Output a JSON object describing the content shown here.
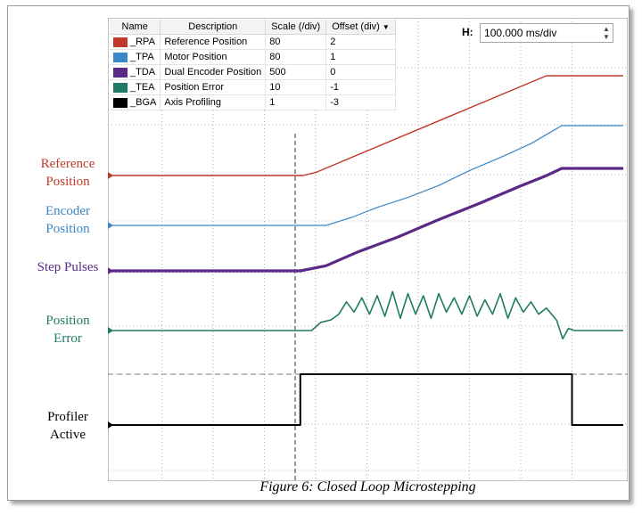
{
  "labels": {
    "reference": [
      "Reference",
      "Position"
    ],
    "encoder": [
      "Encoder",
      "Position"
    ],
    "step": "Step Pulses",
    "error": [
      "Position",
      "Error"
    ],
    "profiler": [
      "Profiler",
      "Active"
    ]
  },
  "caption": "Figure 6:  Closed Loop Microstepping",
  "horizontal": {
    "prefix": "H:",
    "value": "100.000 ms/div"
  },
  "legend": {
    "headers": [
      "Name",
      "Description",
      "Scale (/div)",
      "Offset (div)"
    ],
    "sort_icon": "sort-desc-icon",
    "rows": [
      {
        "name": "_RPA",
        "description": "Reference Position",
        "scale": "80",
        "offset": "2",
        "color": "#c0392b"
      },
      {
        "name": "_TPA",
        "description": "Motor Position",
        "scale": "80",
        "offset": "1",
        "color": "#3a86c8"
      },
      {
        "name": "_TDA",
        "description": "Dual Encoder Position",
        "scale": "500",
        "offset": "0",
        "color": "#5b2a86"
      },
      {
        "name": "_TEA",
        "description": "Position Error",
        "scale": "10",
        "offset": "-1",
        "color": "#1f7a66"
      },
      {
        "name": "_BGA",
        "description": "Axis Profiling",
        "scale": "1",
        "offset": "-3",
        "color": "#000000"
      }
    ]
  },
  "colors": {
    "reference": "#c0392b",
    "encoder": "#3a86c8",
    "step": "#5b2a86",
    "error": "#1f7a66",
    "profiler": "#000000",
    "grid": "#9a9a9a"
  },
  "chart_data": {
    "type": "line",
    "title": "Figure 6:  Closed Loop Microstepping",
    "x_unit": "ms",
    "xlim": [
      0,
      1000
    ],
    "grid": true,
    "legend_position": "top-left",
    "series": [
      {
        "name": "Reference Position",
        "key": "reference",
        "points": [
          [
            0,
            0
          ],
          [
            375,
            0
          ],
          [
            400,
            3
          ],
          [
            850,
            100
          ],
          [
            900,
            100
          ],
          [
            1000,
            100
          ]
        ]
      },
      {
        "name": "Encoder Position",
        "key": "encoder",
        "points": [
          [
            0,
            0
          ],
          [
            420,
            0
          ],
          [
            470,
            8
          ],
          [
            520,
            18
          ],
          [
            580,
            28
          ],
          [
            640,
            40
          ],
          [
            700,
            55
          ],
          [
            760,
            68
          ],
          [
            820,
            82
          ],
          [
            860,
            94
          ],
          [
            880,
            100
          ],
          [
            1000,
            100
          ]
        ]
      },
      {
        "name": "Step Pulses",
        "key": "step",
        "points": [
          [
            0,
            0
          ],
          [
            370,
            0
          ],
          [
            420,
            5
          ],
          [
            480,
            18
          ],
          [
            560,
            33
          ],
          [
            640,
            50
          ],
          [
            720,
            66
          ],
          [
            800,
            83
          ],
          [
            850,
            93
          ],
          [
            880,
            100
          ],
          [
            1000,
            100
          ]
        ]
      },
      {
        "name": "Position Error",
        "key": "error",
        "points": [
          [
            0,
            0
          ],
          [
            392,
            0
          ],
          [
            410,
            20
          ],
          [
            430,
            26
          ],
          [
            445,
            40
          ],
          [
            460,
            70
          ],
          [
            475,
            45
          ],
          [
            490,
            80
          ],
          [
            505,
            40
          ],
          [
            520,
            85
          ],
          [
            535,
            35
          ],
          [
            550,
            95
          ],
          [
            565,
            30
          ],
          [
            580,
            90
          ],
          [
            595,
            40
          ],
          [
            610,
            85
          ],
          [
            625,
            30
          ],
          [
            640,
            90
          ],
          [
            655,
            45
          ],
          [
            670,
            80
          ],
          [
            685,
            40
          ],
          [
            700,
            85
          ],
          [
            715,
            35
          ],
          [
            730,
            75
          ],
          [
            745,
            40
          ],
          [
            760,
            90
          ],
          [
            775,
            30
          ],
          [
            790,
            80
          ],
          [
            805,
            45
          ],
          [
            820,
            70
          ],
          [
            835,
            40
          ],
          [
            850,
            55
          ],
          [
            870,
            25
          ],
          [
            882,
            -20
          ],
          [
            893,
            5
          ],
          [
            905,
            0
          ],
          [
            1000,
            0
          ]
        ]
      },
      {
        "name": "Profiler Active",
        "key": "profiler",
        "points": [
          [
            0,
            0
          ],
          [
            370,
            0
          ],
          [
            370,
            1
          ],
          [
            900,
            1
          ],
          [
            900,
            0
          ],
          [
            1000,
            0
          ]
        ]
      }
    ]
  }
}
